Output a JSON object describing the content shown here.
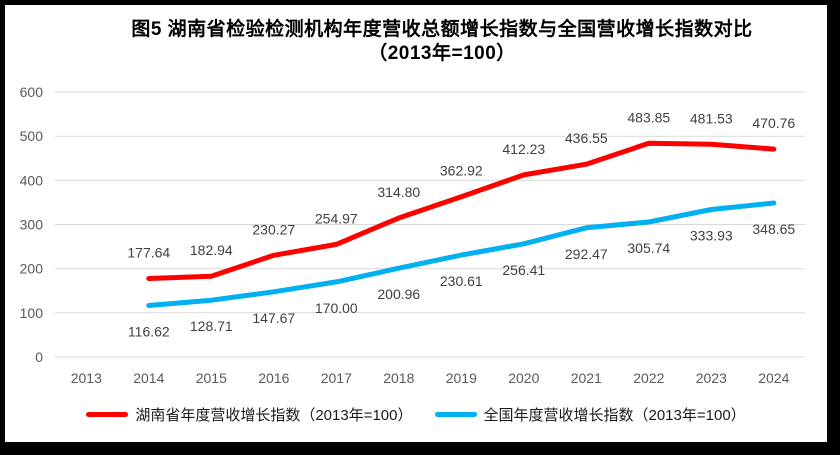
{
  "chart_data": {
    "type": "line",
    "title_line1": "图5 湖南省检验检测机构年度营收总额增长指数与全国营收增长指数对比",
    "title_line2": "（2013年=100）",
    "categories": [
      "2013",
      "2014",
      "2015",
      "2016",
      "2017",
      "2018",
      "2019",
      "2020",
      "2021",
      "2022",
      "2023",
      "2024"
    ],
    "y_ticks": [
      0,
      100,
      200,
      300,
      400,
      500,
      600
    ],
    "ylim": [
      0,
      600
    ],
    "grid": true,
    "legend_position": "bottom",
    "series": [
      {
        "name": "湖南省年度营收增长指数（2013年=100）",
        "color": "#FF0000",
        "label_position": "above",
        "values": [
          null,
          177.64,
          182.94,
          230.27,
          254.97,
          314.8,
          362.92,
          412.23,
          436.55,
          483.85,
          481.53,
          470.76
        ]
      },
      {
        "name": "全国年度营收增长指数（2013年=100）",
        "color": "#00B0F0",
        "label_position": "below",
        "values": [
          null,
          116.62,
          128.71,
          147.67,
          170.0,
          200.96,
          230.61,
          256.41,
          292.47,
          305.74,
          333.93,
          348.65
        ]
      }
    ],
    "colors": {
      "gridline": "#D9D9D9",
      "axis_text": "#595959",
      "data_label_text": "#404040",
      "frame": "#000000",
      "plot_background": "#FFFFFF"
    }
  }
}
